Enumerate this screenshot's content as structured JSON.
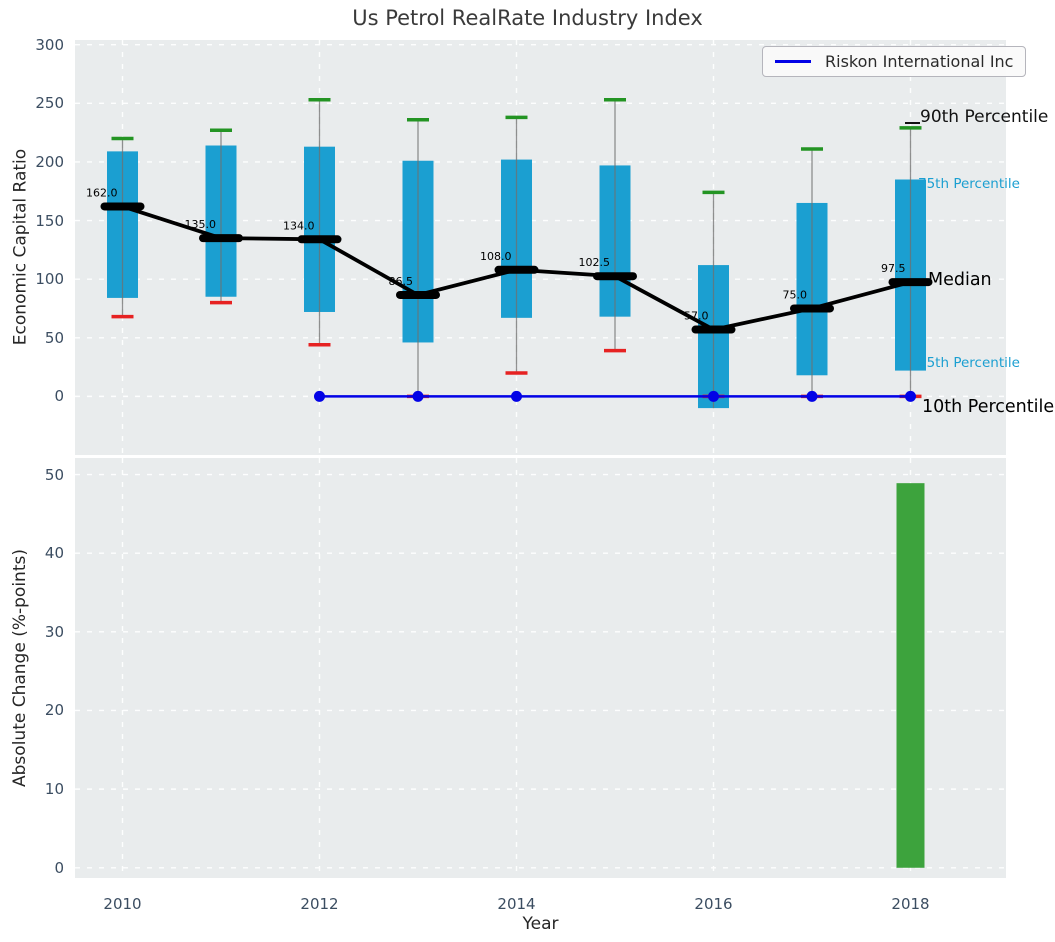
{
  "title": "Us Petrol RealRate Industry Index",
  "legend": {
    "label": "Riskon International Inc"
  },
  "annotations": {
    "p90": "90th Percentile",
    "p75": "75th Percentile",
    "median": "Median",
    "p25": "25th Percentile",
    "p10": "10th Percentile"
  },
  "colors": {
    "plot_bg": "#e9eced",
    "grid": "#ffffff",
    "box": "#1b9fd1",
    "median": "#000000",
    "p90_cap": "#239423",
    "p10_cap": "#e62222",
    "whisker": "#6f6f6f",
    "company_line": "#0202e6",
    "bar": "#3da33d",
    "tick_label": "#3b4d61",
    "title_color": "#3a3a3a"
  },
  "chart_data": [
    {
      "type": "boxplot",
      "title": "Us Petrol RealRate Industry Index",
      "ylabel": "Economic Capital Ratio",
      "ylim": [
        -50,
        304
      ],
      "yticks": [
        0,
        50,
        100,
        150,
        200,
        250,
        300
      ],
      "xgrid_years": [
        2010,
        2012,
        2014,
        2016,
        2018
      ],
      "grid": "on",
      "legend_position": "upper right",
      "boxes": [
        {
          "year": 2010,
          "p90": 220,
          "p75": 209,
          "median": 162.0,
          "p25": 84,
          "p10": 68,
          "label": "162.0"
        },
        {
          "year": 2011,
          "p90": 227,
          "p75": 214,
          "median": 135.0,
          "p25": 85,
          "p10": 80,
          "label": "135.0"
        },
        {
          "year": 2012,
          "p90": 253,
          "p75": 213,
          "median": 134.0,
          "p25": 72,
          "p10": 44,
          "label": "134.0"
        },
        {
          "year": 2013,
          "p90": 236,
          "p75": 201,
          "median": 86.5,
          "p25": 46,
          "p10": 0,
          "label": "86.5"
        },
        {
          "year": 2014,
          "p90": 238,
          "p75": 202,
          "median": 108.0,
          "p25": 67,
          "p10": 20,
          "label": "108.0"
        },
        {
          "year": 2015,
          "p90": 253,
          "p75": 197,
          "median": 102.5,
          "p25": 68,
          "p10": 39,
          "label": "102.5"
        },
        {
          "year": 2016,
          "p90": 174,
          "p75": 112,
          "median": 57.0,
          "p25": -10,
          "p10": 0,
          "label": "57.0"
        },
        {
          "year": 2017,
          "p90": 211,
          "p75": 165,
          "median": 75.0,
          "p25": 18,
          "p10": 0,
          "label": "75.0"
        },
        {
          "year": 2018,
          "p90": 229,
          "p75": 185,
          "median": 97.5,
          "p25": 22,
          "p10": 0,
          "label": "97.5"
        }
      ],
      "series": [
        {
          "name": "Riskon International Inc",
          "x": [
            2012,
            2013,
            2014,
            2015,
            2016,
            2017,
            2018
          ],
          "values": [
            0,
            0,
            0,
            0,
            0,
            0,
            0
          ],
          "marker_x": [
            2012,
            2013,
            2014,
            2016,
            2017,
            2018
          ]
        }
      ]
    },
    {
      "type": "bar",
      "ylabel": "Absolute Change (%-points)",
      "xlabel": "Year",
      "ylim": [
        -1.3,
        52.1
      ],
      "yticks": [
        0,
        10,
        20,
        30,
        40,
        50
      ],
      "xticks": [
        2010,
        2012,
        2014,
        2016,
        2018
      ],
      "grid": "on",
      "bars": [
        {
          "year": 2018,
          "value": 48.9
        }
      ]
    }
  ]
}
